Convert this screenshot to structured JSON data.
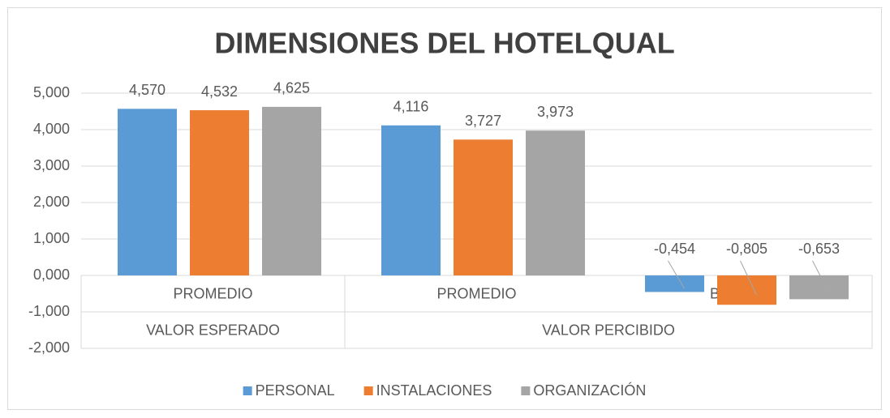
{
  "chart_data": {
    "type": "bar",
    "title": "DIMENSIONES DEL HOTELQUAL",
    "categories": [
      "PROMEDIO",
      "PROMEDIO",
      "BRECHA"
    ],
    "parent_categories": [
      "VALOR ESPERADO",
      "VALOR PERCIBIDO",
      "VALOR PERCIBIDO"
    ],
    "series": [
      {
        "name": "PERSONAL",
        "color": "#5b9bd5",
        "values": [
          4.57,
          4.116,
          -0.454
        ],
        "value_labels": [
          "4,570",
          "4,116",
          "-0,454"
        ]
      },
      {
        "name": "INSTALACIONES",
        "color": "#ed7d31",
        "values": [
          4.532,
          3.727,
          -0.805
        ],
        "value_labels": [
          "4,532",
          "3,727",
          "-0,805"
        ]
      },
      {
        "name": "ORGANIZACIÓN",
        "color": "#a5a5a5",
        "values": [
          4.625,
          3.973,
          -0.653
        ],
        "value_labels": [
          "4,625",
          "3,973",
          "-0,653"
        ]
      }
    ],
    "ylim": [
      -2,
      5
    ],
    "yticks": [
      {
        "value": -2,
        "label": "-2,000"
      },
      {
        "value": -1,
        "label": "-1,000"
      },
      {
        "value": 0,
        "label": "0,000"
      },
      {
        "value": 1,
        "label": "1,000"
      },
      {
        "value": 2,
        "label": "2,000"
      },
      {
        "value": 3,
        "label": "3,000"
      },
      {
        "value": 4,
        "label": "4,000"
      },
      {
        "value": 5,
        "label": "5,000"
      }
    ],
    "grid": true,
    "legend": "bottom"
  }
}
